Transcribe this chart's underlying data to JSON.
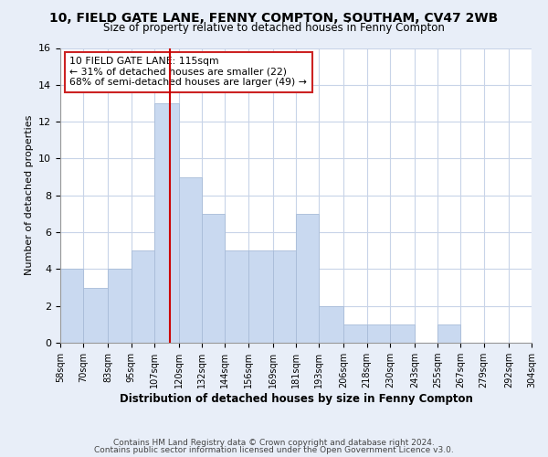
{
  "title": "10, FIELD GATE LANE, FENNY COMPTON, SOUTHAM, CV47 2WB",
  "subtitle": "Size of property relative to detached houses in Fenny Compton",
  "xlabel": "Distribution of detached houses by size in Fenny Compton",
  "ylabel": "Number of detached properties",
  "bin_edges": [
    58,
    70,
    83,
    95,
    107,
    120,
    132,
    144,
    156,
    169,
    181,
    193,
    206,
    218,
    230,
    243,
    255,
    267,
    279,
    292,
    304
  ],
  "counts": [
    4,
    3,
    4,
    5,
    13,
    9,
    7,
    5,
    5,
    5,
    7,
    2,
    1,
    1,
    1,
    0,
    1,
    0,
    0,
    0
  ],
  "bar_color": "#c9d9f0",
  "bar_edgecolor": "#a8bcd8",
  "vline_x": 115,
  "vline_color": "#cc0000",
  "annotation_title": "10 FIELD GATE LANE: 115sqm",
  "annotation_line1": "← 31% of detached houses are smaller (22)",
  "annotation_line2": "68% of semi-detached houses are larger (49) →",
  "ylim": [
    0,
    16
  ],
  "yticks": [
    0,
    2,
    4,
    6,
    8,
    10,
    12,
    14,
    16
  ],
  "footer1": "Contains HM Land Registry data © Crown copyright and database right 2024.",
  "footer2": "Contains public sector information licensed under the Open Government Licence v3.0.",
  "bg_color": "#e8eef8",
  "plot_bg_color": "#ffffff",
  "grid_color": "#c8d4e8"
}
